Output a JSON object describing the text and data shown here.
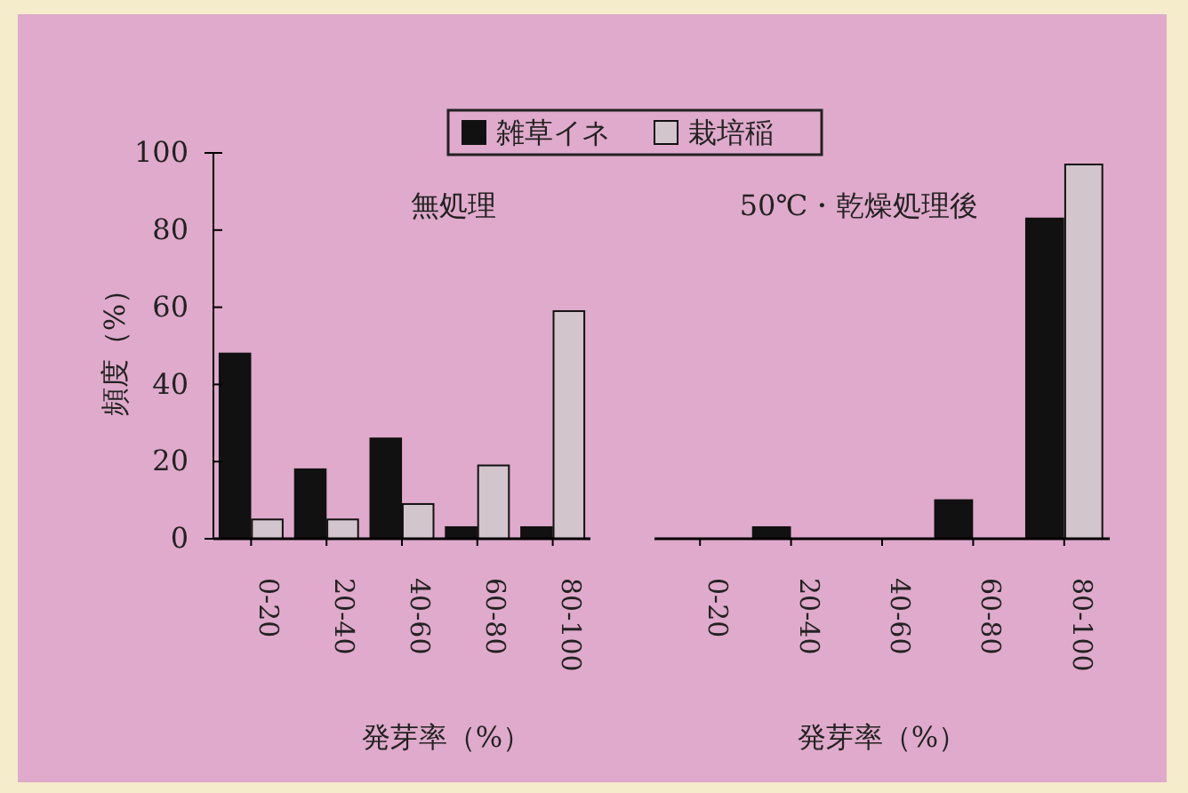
{
  "chart_data": [
    {
      "type": "bar",
      "title": "無処理",
      "xlabel": "発芽率（%）",
      "ylabel": "頻度（%）",
      "categories": [
        "0-20",
        "20-40",
        "40-60",
        "60-80",
        "80-100"
      ],
      "series": [
        {
          "name": "雑草イネ",
          "color": "#111111",
          "values": [
            48,
            18,
            26,
            3,
            3
          ]
        },
        {
          "name": "栽培稲",
          "color": "#d2c6cc",
          "values": [
            5,
            5,
            9,
            19,
            59
          ]
        }
      ],
      "ylim": [
        0,
        100
      ],
      "yticks": [
        0,
        20,
        40,
        60,
        80,
        100
      ],
      "legend": "top",
      "grid": false
    },
    {
      "type": "bar",
      "title": "50℃・乾燥処理後",
      "xlabel": "発芽率（%）",
      "categories": [
        "0-20",
        "20-40",
        "40-60",
        "60-80",
        "80-100"
      ],
      "series": [
        {
          "color": "#111111",
          "values": [
            0,
            3,
            0,
            10,
            83
          ]
        },
        {
          "color": "#d2c6cc",
          "values": [
            0,
            0,
            0,
            0,
            97
          ]
        }
      ],
      "ylim": [
        0,
        100
      ],
      "yticks": [
        0,
        20,
        40,
        60,
        80,
        100
      ],
      "tick_labels": "x",
      "grid": false
    }
  ]
}
